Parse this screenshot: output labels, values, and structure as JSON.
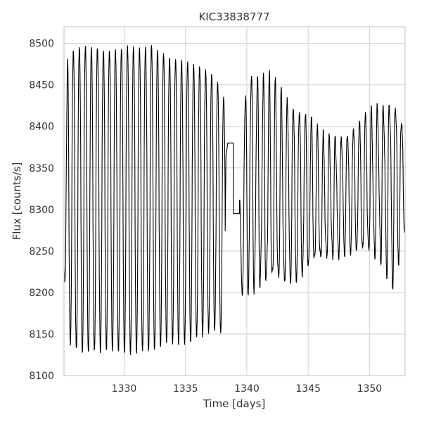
{
  "chart_data": {
    "type": "line",
    "title": "KIC33838777",
    "xlabel": "Time [days]",
    "ylabel": "Flux [counts/s]",
    "xlim": [
      1325.1,
      1352.9
    ],
    "ylim": [
      8100,
      8520
    ],
    "xticks": [
      1330,
      1335,
      1340,
      1345,
      1350
    ],
    "yticks": [
      8100,
      8150,
      8200,
      8250,
      8300,
      8350,
      8400,
      8450,
      8500
    ],
    "grid": true,
    "legend": "none",
    "line_color": "#000000",
    "series": [
      {
        "period_days": 0.49,
        "cycles": [
          {
            "x": 1325.1,
            "max": 8230,
            "min": 8230
          },
          {
            "x": 1325.4,
            "max": 8490,
            "min": 8140
          },
          {
            "x": 1326.4,
            "max": 8496,
            "min": 8128
          },
          {
            "x": 1327.4,
            "max": 8494,
            "min": 8128
          },
          {
            "x": 1328.4,
            "max": 8492,
            "min": 8130
          },
          {
            "x": 1329.4,
            "max": 8492,
            "min": 8130
          },
          {
            "x": 1330.4,
            "max": 8496,
            "min": 8126
          },
          {
            "x": 1331.4,
            "max": 8493,
            "min": 8128
          },
          {
            "x": 1332.4,
            "max": 8496,
            "min": 8130
          },
          {
            "x": 1333.4,
            "max": 8485,
            "min": 8138
          },
          {
            "x": 1334.4,
            "max": 8480,
            "min": 8140
          },
          {
            "x": 1335.4,
            "max": 8475,
            "min": 8140
          },
          {
            "x": 1336.4,
            "max": 8470,
            "min": 8148
          },
          {
            "x": 1337.4,
            "max": 8460,
            "min": 8155
          },
          {
            "x": 1338.2,
            "max": 8430,
            "min": 8150
          }
        ],
        "gap": [
          {
            "x": 1338.3,
            "y": 8365
          },
          {
            "x": 1338.45,
            "y": 8380
          },
          {
            "x": 1338.9,
            "y": 8380
          },
          {
            "x": 1338.9,
            "y": 8295
          },
          {
            "x": 1339.4,
            "y": 8295
          }
        ],
        "cycles_after_gap": [
          {
            "x": 1339.4,
            "max": 8310,
            "min": 8195
          },
          {
            "x": 1340.0,
            "max": 8465,
            "min": 8200
          },
          {
            "x": 1341.0,
            "max": 8445,
            "min": 8205
          },
          {
            "x": 1342.0,
            "max": 8440,
            "min": 8202
          },
          {
            "x": 1343.0,
            "max": 8425,
            "min": 8205
          },
          {
            "x": 1344.0,
            "max": 8418,
            "min": 8212
          },
          {
            "x": 1345.0,
            "max": 8405,
            "min": 8225
          },
          {
            "x": 1346.0,
            "max": 8380,
            "min": 8232
          },
          {
            "x": 1347.0,
            "max": 8378,
            "min": 8242
          },
          {
            "x": 1348.0,
            "max": 8388,
            "min": 8248
          },
          {
            "x": 1349.0,
            "max": 8398,
            "min": 8248
          },
          {
            "x": 1350.0,
            "max": 8410,
            "min": 8245
          },
          {
            "x": 1351.0,
            "max": 8418,
            "min": 8240
          },
          {
            "x": 1352.0,
            "max": 8435,
            "min": 8215
          },
          {
            "x": 1352.9,
            "max": 8395,
            "min": 8280
          }
        ]
      }
    ]
  }
}
